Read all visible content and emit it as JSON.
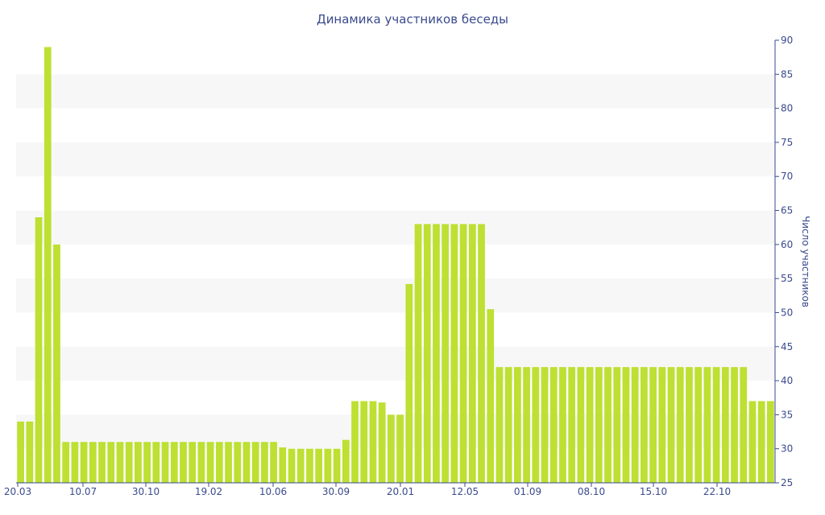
{
  "chart_data": {
    "type": "bar",
    "title": "Динамика участников беседы",
    "xlabel": "",
    "ylabel": "Число участников",
    "ylim": [
      25,
      90
    ],
    "y_ticks": [
      25,
      30,
      35,
      40,
      45,
      50,
      55,
      60,
      65,
      70,
      75,
      80,
      85,
      90
    ],
    "y_axis_side": "right",
    "grid": "alternating horizontal bands",
    "x_tick_labels": [
      "20.03",
      "10.07",
      "30.10",
      "19.02",
      "10.06",
      "30.09",
      "20.01",
      "12.05",
      "01.09",
      "08.10",
      "15.10",
      "22.10"
    ],
    "bar_color": "#bde032",
    "values": [
      34,
      34,
      64,
      89,
      60,
      31,
      31,
      31,
      31,
      31,
      31,
      31,
      31,
      31,
      31,
      31,
      31,
      31,
      31,
      31,
      31,
      31,
      31,
      31,
      31,
      31,
      31,
      31,
      31,
      30.2,
      30,
      30,
      30,
      30,
      30,
      30,
      31.3,
      37,
      37,
      37,
      36.8,
      35,
      35,
      54.2,
      63,
      63,
      63,
      63,
      63,
      63,
      63,
      63,
      50.5,
      42,
      42,
      42,
      42,
      42,
      42,
      42,
      42,
      42,
      42,
      42,
      42,
      42,
      42,
      42,
      42,
      42,
      42,
      42,
      42,
      42,
      42,
      42,
      42,
      42,
      42,
      42,
      42,
      37,
      37,
      37
    ]
  }
}
